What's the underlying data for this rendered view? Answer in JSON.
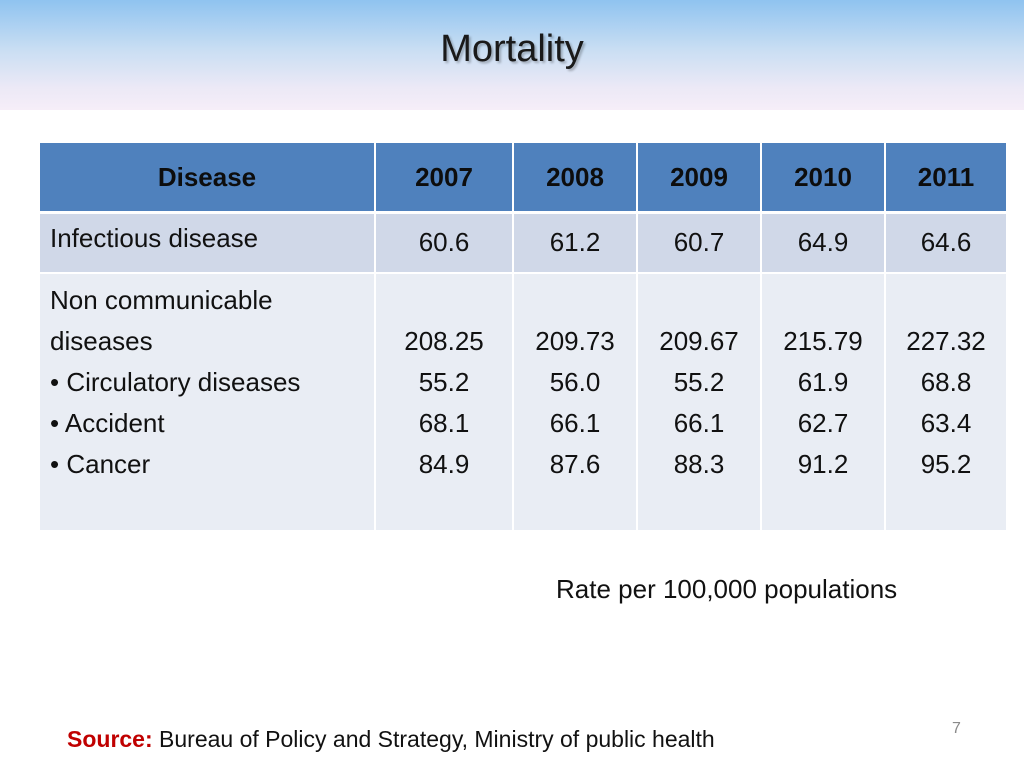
{
  "slide": {
    "title": "Mortality"
  },
  "table": {
    "headers": [
      "Disease",
      "2007",
      "2008",
      "2009",
      "2010",
      "2011"
    ],
    "rows": [
      {
        "name_lines": [
          "Infectious disease"
        ],
        "values": [
          [
            "60.6"
          ],
          [
            "61.2"
          ],
          [
            "60.7"
          ],
          [
            "64.9"
          ],
          [
            "64.6"
          ]
        ]
      },
      {
        "name_lines": [
          "Non communicable",
          "diseases",
          "• Circulatory diseases",
          "• Accident",
          "• Cancer"
        ],
        "values": [
          [
            "208.25",
            "55.2",
            "68.1",
            "84.9"
          ],
          [
            "209.73",
            "56.0",
            "66.1",
            "87.6"
          ],
          [
            "209.67",
            "55.2",
            "66.1",
            "88.3"
          ],
          [
            "215.79",
            "61.9",
            "62.7",
            "91.2"
          ],
          [
            "227.32",
            "68.8",
            "63.4",
            "95.2"
          ]
        ]
      }
    ]
  },
  "note": "Rate per 100,000 populations",
  "page_number": "7",
  "source": {
    "label": "Source:",
    "text": "Bureau of Policy and Strategy, Ministry of public health"
  },
  "colors": {
    "header_bg": "#4f81bd",
    "row1_bg": "#d0d8e8",
    "row2_bg": "#e9edf4",
    "source_label": "#c00000"
  }
}
